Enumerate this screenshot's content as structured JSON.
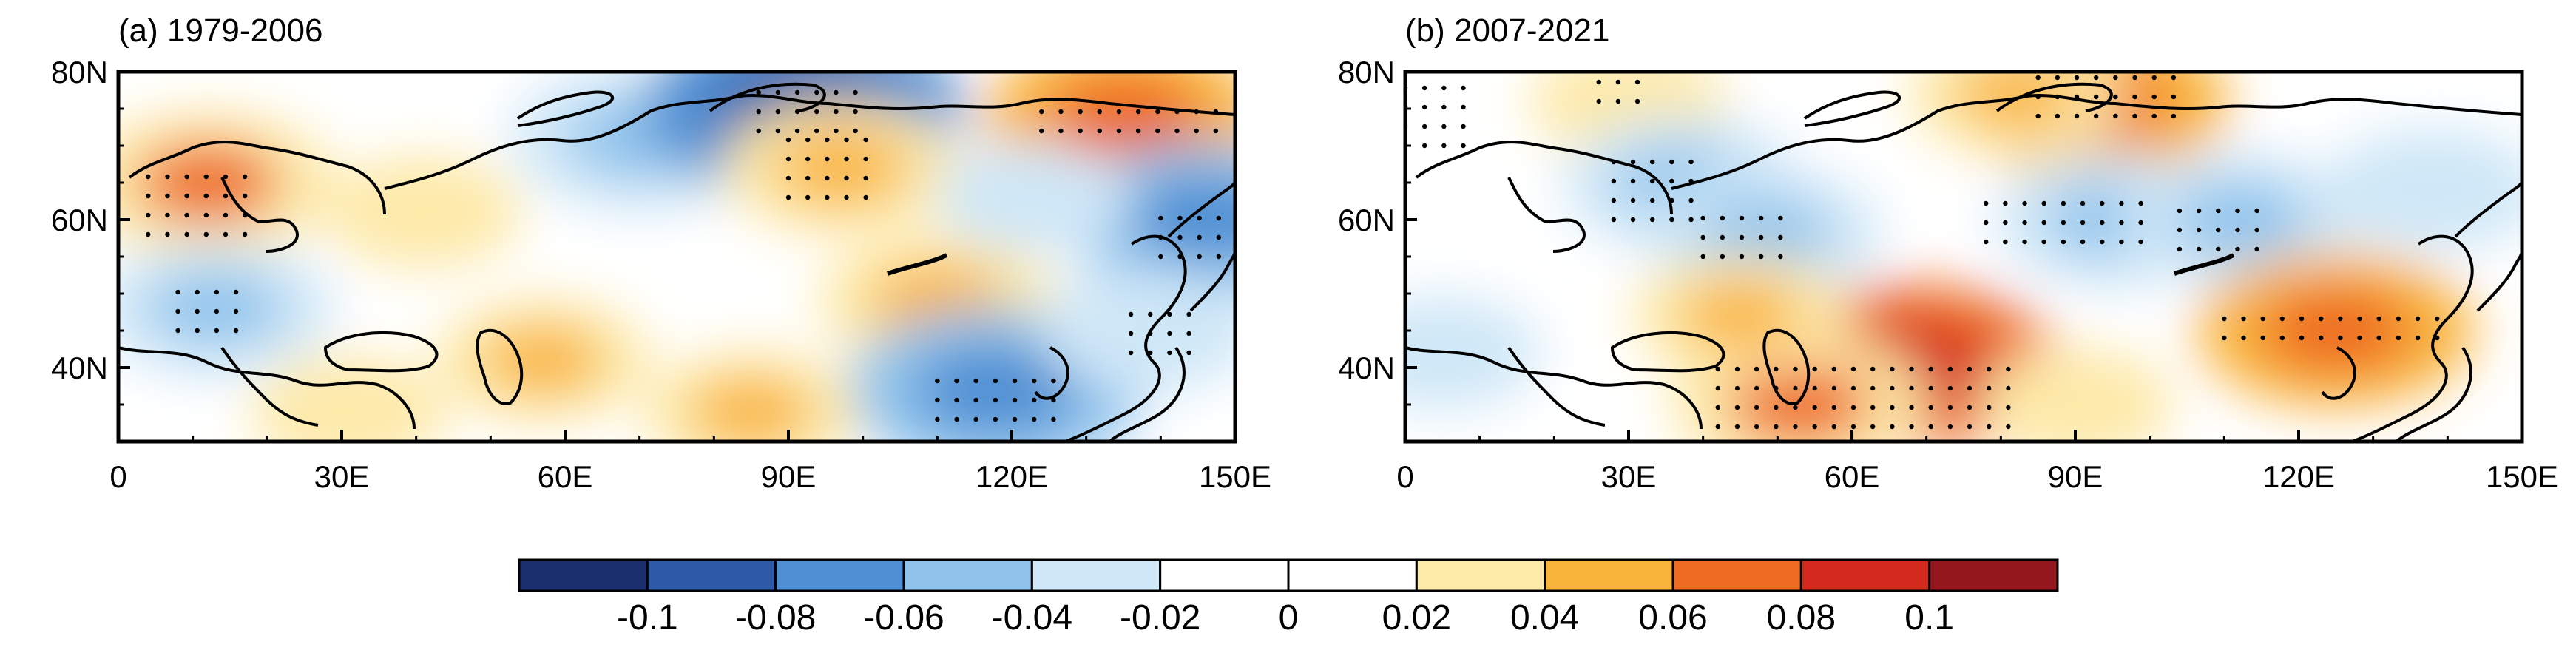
{
  "palette": {
    "levels": [
      -0.1,
      -0.08,
      -0.06,
      -0.04,
      -0.02,
      0,
      0.02,
      0.04,
      0.06,
      0.08,
      0.1
    ],
    "colors": [
      "#1a2f6b",
      "#2e5aa8",
      "#4f8fd3",
      "#8fc3ec",
      "#cfe7f7",
      "#ffffff",
      "#ffffff",
      "#fde9a8",
      "#f9b43c",
      "#ee6a22",
      "#d42a1e",
      "#94171d"
    ],
    "tick_labels": [
      "-0.1",
      "-0.08",
      "-0.06",
      "-0.04",
      "-0.02",
      "0",
      "0.02",
      "0.04",
      "0.06",
      "0.08",
      "0.1"
    ],
    "coast_color": "#000000",
    "stipple_color": "#000000"
  },
  "chart_data": [
    {
      "type": "heatmap",
      "title": "(a) 1979-2006",
      "x_range": [
        0,
        150
      ],
      "y_range": [
        30,
        80
      ],
      "x_ticks": [
        0,
        30,
        60,
        90,
        120,
        150
      ],
      "x_tick_labels": [
        "0",
        "30E",
        "60E",
        "90E",
        "120E",
        "150E"
      ],
      "y_ticks": [
        40,
        60,
        80
      ],
      "y_tick_labels": [
        "40N",
        "60N",
        "80N"
      ],
      "anomalies": [
        {
          "lon": 12,
          "lat": 65,
          "value": 0.06
        },
        {
          "lon": 70,
          "lat": 71,
          "value": -0.06
        },
        {
          "lon": 92,
          "lat": 75,
          "value": -0.09
        },
        {
          "lon": 97,
          "lat": 67,
          "value": 0.05
        },
        {
          "lon": 135,
          "lat": 74,
          "value": 0.07
        },
        {
          "lon": 146,
          "lat": 60,
          "value": -0.07
        },
        {
          "lon": 13,
          "lat": 48,
          "value": -0.05
        },
        {
          "lon": 110,
          "lat": 49,
          "value": 0.05
        },
        {
          "lon": 118,
          "lat": 37,
          "value": -0.08
        },
        {
          "lon": 85,
          "lat": 34,
          "value": 0.04
        },
        {
          "lon": 57,
          "lat": 41,
          "value": 0.04
        },
        {
          "lon": 123,
          "lat": 63,
          "value": -0.03
        },
        {
          "lon": 41,
          "lat": 61,
          "value": 0.03
        },
        {
          "lon": 31,
          "lat": 34,
          "value": 0.03
        },
        {
          "lon": 138,
          "lat": 45,
          "value": -0.04
        }
      ],
      "stipple_regions": [
        {
          "lon": [
            4,
            18
          ],
          "lat": [
            58,
            68
          ]
        },
        {
          "lon": [
            86,
            100
          ],
          "lat": [
            72,
            78
          ]
        },
        {
          "lon": [
            90,
            102
          ],
          "lat": [
            63,
            71
          ]
        },
        {
          "lon": [
            124,
            148
          ],
          "lat": [
            72,
            76
          ]
        },
        {
          "lon": [
            8,
            18
          ],
          "lat": [
            45,
            51
          ]
        },
        {
          "lon": [
            110,
            128
          ],
          "lat": [
            33,
            40
          ]
        },
        {
          "lon": [
            140,
            150
          ],
          "lat": [
            55,
            62
          ]
        },
        {
          "lon": [
            136,
            144
          ],
          "lat": [
            42,
            48
          ]
        }
      ]
    },
    {
      "type": "heatmap",
      "title": "(b) 2007-2021",
      "x_range": [
        0,
        150
      ],
      "y_range": [
        30,
        80
      ],
      "x_ticks": [
        0,
        30,
        60,
        90,
        120,
        150
      ],
      "x_tick_labels": [
        "0",
        "30E",
        "60E",
        "90E",
        "120E",
        "150E"
      ],
      "y_ticks": [
        40,
        60,
        80
      ],
      "y_tick_labels": [
        "40N",
        "60N",
        "80N"
      ],
      "anomalies": [
        {
          "lon": 92,
          "lat": 76,
          "value": 0.07
        },
        {
          "lon": 82,
          "lat": 77,
          "value": 0.04
        },
        {
          "lon": 30,
          "lat": 76,
          "value": 0.03
        },
        {
          "lon": 37,
          "lat": 65,
          "value": -0.05
        },
        {
          "lon": 48,
          "lat": 58,
          "value": -0.05
        },
        {
          "lon": 95,
          "lat": 60,
          "value": -0.05
        },
        {
          "lon": 112,
          "lat": 60,
          "value": -0.05
        },
        {
          "lon": 138,
          "lat": 64,
          "value": -0.04
        },
        {
          "lon": 125,
          "lat": 45,
          "value": 0.07
        },
        {
          "lon": 68,
          "lat": 40,
          "value": 0.08
        },
        {
          "lon": 53,
          "lat": 35,
          "value": 0.06
        },
        {
          "lon": 45,
          "lat": 47,
          "value": 0.04
        },
        {
          "lon": 5,
          "lat": 42,
          "value": -0.03
        },
        {
          "lon": 90,
          "lat": 35,
          "value": 0.03
        }
      ],
      "stipple_regions": [
        {
          "lon": [
            0,
            8
          ],
          "lat": [
            70,
            78
          ]
        },
        {
          "lon": [
            26,
            32
          ],
          "lat": [
            76,
            80
          ]
        },
        {
          "lon": [
            85,
            105
          ],
          "lat": [
            74,
            80
          ]
        },
        {
          "lon": [
            28,
            40
          ],
          "lat": [
            60,
            68
          ]
        },
        {
          "lon": [
            40,
            52
          ],
          "lat": [
            55,
            62
          ]
        },
        {
          "lon": [
            78,
            100
          ],
          "lat": [
            57,
            64
          ]
        },
        {
          "lon": [
            104,
            116
          ],
          "lat": [
            56,
            62
          ]
        },
        {
          "lon": [
            110,
            140
          ],
          "lat": [
            44,
            47
          ]
        },
        {
          "lon": [
            42,
            82
          ],
          "lat": [
            32,
            42
          ]
        }
      ]
    }
  ]
}
